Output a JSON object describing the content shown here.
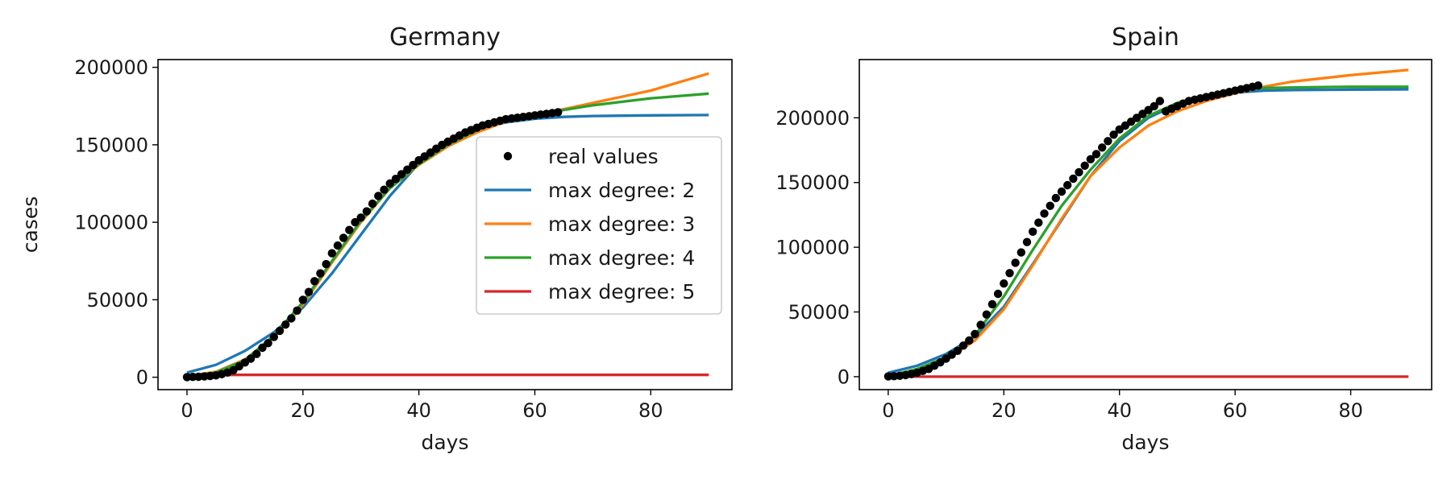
{
  "chart_data": [
    {
      "type": "line",
      "title": "Germany",
      "xlabel": "days",
      "ylabel": "cases",
      "xlim": [
        -5,
        94
      ],
      "ylim": [
        -8000,
        205000
      ],
      "xticks": [
        "0",
        "20",
        "40",
        "60",
        "80"
      ],
      "yticks": [
        "0",
        "50000",
        "100000",
        "150000",
        "200000"
      ],
      "legend": "center-right",
      "grid": false,
      "real_values": {
        "name": "real values",
        "color": "#000000",
        "x": [
          0,
          1,
          2,
          3,
          4,
          5,
          6,
          7,
          8,
          9,
          10,
          11,
          12,
          13,
          14,
          15,
          16,
          17,
          18,
          19,
          20,
          21,
          22,
          23,
          24,
          25,
          26,
          27,
          28,
          29,
          30,
          31,
          32,
          33,
          34,
          35,
          36,
          37,
          38,
          39,
          40,
          41,
          42,
          43,
          44,
          45,
          46,
          47,
          48,
          49,
          50,
          51,
          52,
          53,
          54,
          55,
          56,
          57,
          58,
          59,
          60,
          61,
          62,
          63,
          64
        ],
        "y": [
          100,
          200,
          300,
          500,
          800,
          1200,
          2000,
          3000,
          4500,
          7000,
          9500,
          12000,
          15000,
          19000,
          22000,
          26000,
          30000,
          34000,
          38000,
          43000,
          50000,
          55000,
          62000,
          67000,
          73000,
          80000,
          85000,
          90000,
          95000,
          100000,
          103000,
          107000,
          112000,
          117000,
          121000,
          125000,
          128000,
          131000,
          134000,
          137000,
          140000,
          142500,
          145000,
          147500,
          150000,
          152000,
          154000,
          156000,
          158000,
          159500,
          161000,
          162500,
          163500,
          164500,
          165500,
          166500,
          167000,
          167500,
          168000,
          168500,
          169000,
          169500,
          170000,
          170500,
          171000
        ]
      },
      "series": [
        {
          "name": "max degree: 2",
          "color": "#1f77b4",
          "x": [
            0,
            5,
            10,
            15,
            20,
            25,
            30,
            35,
            40,
            45,
            50,
            55,
            60,
            65,
            70,
            80,
            90
          ],
          "y": [
            3000,
            8000,
            17000,
            29000,
            45000,
            67000,
            92000,
            117000,
            138000,
            152000,
            160000,
            164500,
            166800,
            168000,
            168600,
            169000,
            169200
          ]
        },
        {
          "name": "max degree: 3",
          "color": "#ff7f0e",
          "x": [
            0,
            5,
            10,
            15,
            20,
            25,
            30,
            35,
            40,
            45,
            50,
            55,
            60,
            65,
            70,
            80,
            90
          ],
          "y": [
            800,
            3500,
            11500,
            26000,
            47000,
            74000,
            100000,
            122000,
            137000,
            149000,
            158000,
            165000,
            169500,
            173000,
            177000,
            185000,
            196000
          ]
        },
        {
          "name": "max degree: 4",
          "color": "#2ca02c",
          "x": [
            0,
            5,
            10,
            15,
            20,
            25,
            30,
            35,
            40,
            45,
            50,
            55,
            60,
            65,
            70,
            80,
            90
          ],
          "y": [
            500,
            3000,
            11000,
            27000,
            48500,
            75000,
            101000,
            122000,
            137500,
            150000,
            159500,
            166000,
            169500,
            172500,
            175500,
            180000,
            183000
          ]
        },
        {
          "name": "max degree: 5",
          "color": "#d62728",
          "x": [
            0,
            90
          ],
          "y": [
            1500,
            1500
          ]
        }
      ]
    },
    {
      "type": "line",
      "title": "Spain",
      "xlabel": "days",
      "xlim": [
        -5,
        94
      ],
      "ylim": [
        -10000,
        245000
      ],
      "xticks": [
        "0",
        "20",
        "40",
        "60",
        "80"
      ],
      "yticks": [
        "0",
        "50000",
        "100000",
        "150000",
        "200000"
      ],
      "grid": false,
      "real_values": {
        "name": "real values",
        "color": "#000000",
        "x": [
          0,
          1,
          2,
          3,
          4,
          5,
          6,
          7,
          8,
          9,
          10,
          11,
          12,
          13,
          14,
          15,
          16,
          17,
          18,
          19,
          20,
          21,
          22,
          23,
          24,
          25,
          26,
          27,
          28,
          29,
          30,
          31,
          32,
          33,
          34,
          35,
          36,
          37,
          38,
          39,
          40,
          41,
          42,
          43,
          44,
          45,
          46,
          47,
          48,
          49,
          50,
          51,
          52,
          53,
          54,
          55,
          56,
          57,
          58,
          59,
          60,
          61,
          62,
          63,
          64
        ],
        "y": [
          200,
          400,
          700,
          1200,
          2000,
          3000,
          4500,
          6000,
          8500,
          11000,
          14000,
          17000,
          20000,
          24000,
          28000,
          33000,
          40000,
          48000,
          56000,
          64000,
          72000,
          80000,
          88000,
          96000,
          104000,
          112000,
          119000,
          126000,
          132000,
          138000,
          143000,
          148000,
          153000,
          158000,
          163000,
          168000,
          172000,
          177000,
          182000,
          187000,
          191000,
          194000,
          197000,
          200000,
          203000,
          206000,
          209000,
          213000,
          205000,
          207000,
          209000,
          211000,
          213000,
          214000,
          215000,
          216000,
          217000,
          218000,
          219000,
          220000,
          221000,
          222000,
          223000,
          224000,
          225000
        ]
      },
      "series": [
        {
          "name": "max degree: 2",
          "color": "#1f77b4",
          "x": [
            0,
            5,
            10,
            15,
            20,
            25,
            30,
            35,
            40,
            45,
            50,
            55,
            60,
            65,
            70,
            80,
            90
          ],
          "y": [
            3000,
            8500,
            17500,
            31000,
            54000,
            87000,
            121000,
            155000,
            182000,
            200000,
            210500,
            216000,
            219500,
            221000,
            221500,
            221800,
            222000
          ]
        },
        {
          "name": "max degree: 3",
          "color": "#ff7f0e",
          "x": [
            0,
            5,
            10,
            15,
            20,
            25,
            30,
            35,
            40,
            45,
            50,
            55,
            60,
            65,
            70,
            80,
            90
          ],
          "y": [
            500,
            4500,
            13000,
            28000,
            52000,
            86000,
            122000,
            155000,
            177000,
            194000,
            205000,
            213000,
            219000,
            224000,
            228000,
            233000,
            237000
          ]
        },
        {
          "name": "max degree: 4",
          "color": "#2ca02c",
          "x": [
            0,
            5,
            10,
            15,
            20,
            25,
            30,
            35,
            40,
            45,
            50,
            55,
            60,
            65,
            70,
            80,
            90
          ],
          "y": [
            500,
            6000,
            15000,
            32000,
            62000,
            98000,
            132000,
            160000,
            184000,
            201500,
            211500,
            217500,
            221000,
            223000,
            223500,
            224000,
            224000
          ]
        },
        {
          "name": "max degree: 5",
          "color": "#d62728",
          "x": [
            0,
            90
          ],
          "y": [
            0,
            0
          ]
        }
      ]
    }
  ]
}
